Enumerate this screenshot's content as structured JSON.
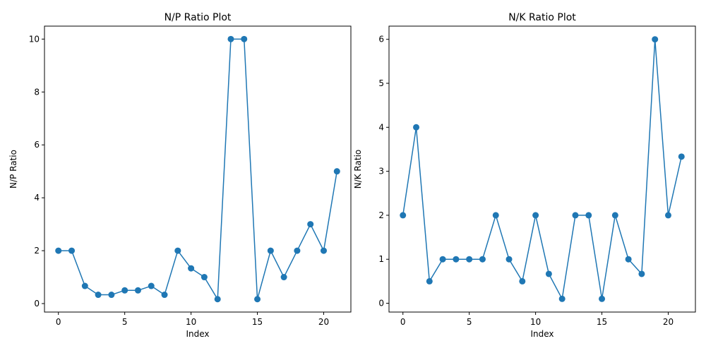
{
  "chart_data": [
    {
      "type": "line",
      "title": "N/P Ratio Plot",
      "xlabel": "Index",
      "ylabel": "N/P Ratio",
      "xlim": [
        -1.05,
        22.05
      ],
      "ylim": [
        -0.32,
        10.49
      ],
      "xticks": [
        0,
        5,
        10,
        15,
        20
      ],
      "yticks": [
        0,
        2,
        4,
        6,
        8,
        10
      ],
      "grid": false,
      "legend": "none",
      "color": "#1f77b4",
      "x": [
        0,
        1,
        2,
        3,
        4,
        5,
        6,
        7,
        8,
        9,
        10,
        11,
        12,
        13,
        14,
        15,
        16,
        17,
        18,
        19,
        20,
        21
      ],
      "values": [
        2,
        2,
        0.667,
        0.333,
        0.333,
        0.5,
        0.5,
        0.667,
        0.333,
        2,
        1.333,
        1,
        0.167,
        10,
        10,
        0.167,
        2,
        1,
        2,
        3,
        2,
        5
      ]
    },
    {
      "type": "line",
      "title": "N/K Ratio Plot",
      "xlabel": "Index",
      "ylabel": "N/K Ratio",
      "xlim": [
        -1.05,
        22.05
      ],
      "ylim": [
        -0.2,
        6.3
      ],
      "xticks": [
        0,
        5,
        10,
        15,
        20
      ],
      "yticks": [
        0,
        1,
        2,
        3,
        4,
        5,
        6
      ],
      "grid": false,
      "legend": "none",
      "color": "#1f77b4",
      "x": [
        0,
        1,
        2,
        3,
        4,
        5,
        6,
        7,
        8,
        9,
        10,
        11,
        12,
        13,
        14,
        15,
        16,
        17,
        18,
        19,
        20,
        21
      ],
      "values": [
        2,
        4,
        0.5,
        1,
        1,
        1,
        1,
        2,
        1,
        0.5,
        2,
        0.667,
        0.1,
        2,
        2,
        0.1,
        2,
        1,
        0.667,
        6,
        2,
        3.333
      ]
    }
  ]
}
